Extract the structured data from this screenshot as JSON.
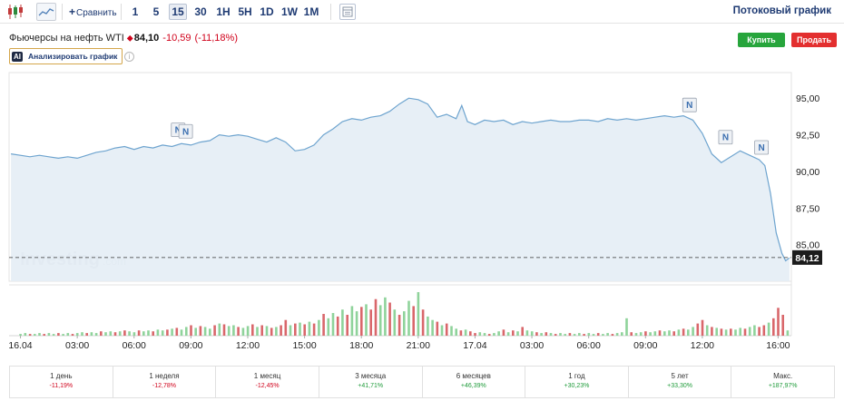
{
  "toolbar": {
    "compare_label": "Сравнить",
    "intervals": [
      {
        "label": "1",
        "active": false
      },
      {
        "label": "5",
        "active": false
      },
      {
        "label": "15",
        "active": true
      },
      {
        "label": "30",
        "active": false
      },
      {
        "label": "1H",
        "active": false
      },
      {
        "label": "5H",
        "active": false
      },
      {
        "label": "1D",
        "active": false
      },
      {
        "label": "1W",
        "active": false
      },
      {
        "label": "1M",
        "active": false
      }
    ],
    "stream_label": "Потоковый график"
  },
  "instrument": {
    "name": "Фьючерсы на нефть WTI",
    "arrow": "⬥",
    "price": "84,10",
    "change": "-10,59",
    "change_pct": "(-11,18%)"
  },
  "actions": {
    "buy": "Купить",
    "sell": "Продать",
    "analyze": "Анализировать график",
    "ai_badge": "AI"
  },
  "colors": {
    "brand": "#1f3b73",
    "buy": "#27a53c",
    "sell": "#e32f2f",
    "line": "#6ea4cf",
    "area": "#e4edf5",
    "vol_up": "#8fd39b",
    "vol_down": "#d9676b"
  },
  "chart_data": {
    "type": "area",
    "watermark": "Investing",
    "watermark_suffix": ".com",
    "y_ticks": [
      "95,00",
      "92,50",
      "90,00",
      "87,50",
      "85,00"
    ],
    "y_tick_values": [
      95.0,
      92.5,
      90.0,
      87.5,
      85.0
    ],
    "ylim": [
      82.5,
      96.5
    ],
    "current_price_label": "84,12",
    "current_price": 84.12,
    "x_ticks": [
      "16.04",
      "03:00",
      "06:00",
      "09:00",
      "12:00",
      "15:00",
      "18:00",
      "21:00",
      "17.04",
      "03:00",
      "06:00",
      "09:00",
      "12:00",
      "16:00"
    ],
    "x_tick_hours": [
      0,
      3,
      6,
      9,
      12,
      15,
      18,
      21,
      24,
      27,
      30,
      33,
      36,
      40
    ],
    "x_range_hours": [
      -0.6,
      40.7
    ],
    "series": [
      {
        "points": [
          [
            -0.5,
            91.2
          ],
          [
            0,
            91.1
          ],
          [
            0.5,
            91.0
          ],
          [
            1,
            91.1
          ],
          [
            1.5,
            91.0
          ],
          [
            2,
            90.9
          ],
          [
            2.5,
            91.0
          ],
          [
            3,
            90.9
          ],
          [
            3.5,
            91.1
          ],
          [
            4,
            91.3
          ],
          [
            4.5,
            91.4
          ],
          [
            5,
            91.6
          ],
          [
            5.5,
            91.7
          ],
          [
            6,
            91.5
          ],
          [
            6.5,
            91.7
          ],
          [
            7,
            91.6
          ],
          [
            7.5,
            91.8
          ],
          [
            8,
            91.7
          ],
          [
            8.5,
            91.9
          ],
          [
            9,
            91.8
          ],
          [
            9.5,
            92.0
          ],
          [
            10,
            92.1
          ],
          [
            10.5,
            92.5
          ],
          [
            11,
            92.4
          ],
          [
            11.5,
            92.5
          ],
          [
            12,
            92.4
          ],
          [
            12.5,
            92.2
          ],
          [
            13,
            92.0
          ],
          [
            13.5,
            92.3
          ],
          [
            14,
            92.0
          ],
          [
            14.5,
            91.4
          ],
          [
            15,
            91.5
          ],
          [
            15.5,
            91.8
          ],
          [
            16,
            92.5
          ],
          [
            16.5,
            92.9
          ],
          [
            17,
            93.4
          ],
          [
            17.5,
            93.6
          ],
          [
            18,
            93.5
          ],
          [
            18.5,
            93.7
          ],
          [
            19,
            93.8
          ],
          [
            19.5,
            94.1
          ],
          [
            20,
            94.6
          ],
          [
            20.5,
            95.0
          ],
          [
            21,
            94.9
          ],
          [
            21.5,
            94.6
          ],
          [
            22,
            93.7
          ],
          [
            22.5,
            93.9
          ],
          [
            23,
            93.6
          ],
          [
            23.3,
            94.5
          ],
          [
            23.6,
            93.4
          ],
          [
            24,
            93.2
          ],
          [
            24.5,
            93.5
          ],
          [
            25,
            93.4
          ],
          [
            25.5,
            93.5
          ],
          [
            26,
            93.2
          ],
          [
            26.5,
            93.4
          ],
          [
            27,
            93.3
          ],
          [
            27.5,
            93.4
          ],
          [
            28,
            93.5
          ],
          [
            28.5,
            93.4
          ],
          [
            29,
            93.4
          ],
          [
            29.5,
            93.5
          ],
          [
            30,
            93.5
          ],
          [
            30.5,
            93.4
          ],
          [
            31,
            93.6
          ],
          [
            31.5,
            93.5
          ],
          [
            32,
            93.6
          ],
          [
            32.5,
            93.5
          ],
          [
            33,
            93.6
          ],
          [
            33.5,
            93.7
          ],
          [
            34,
            93.8
          ],
          [
            34.5,
            93.7
          ],
          [
            35,
            93.8
          ],
          [
            35.5,
            93.5
          ],
          [
            36,
            92.6
          ],
          [
            36.5,
            91.2
          ],
          [
            37,
            90.6
          ],
          [
            37.5,
            91.0
          ],
          [
            38,
            91.4
          ],
          [
            38.5,
            91.1
          ],
          [
            39,
            90.8
          ],
          [
            39.3,
            90.4
          ],
          [
            39.6,
            88.5
          ],
          [
            39.9,
            85.8
          ],
          [
            40.2,
            84.4
          ],
          [
            40.4,
            83.9
          ],
          [
            40.6,
            84.1
          ]
        ]
      }
    ],
    "news_markers": [
      {
        "label": "N",
        "x": 8.3,
        "y": 92.0
      },
      {
        "label": "N",
        "x": 8.7,
        "y": 91.9
      },
      {
        "label": "N",
        "x": 35.3,
        "y": 93.7
      },
      {
        "label": "N",
        "x": 37.2,
        "y": 91.5
      },
      {
        "label": "N",
        "x": 39.1,
        "y": 90.8
      }
    ],
    "volume": {
      "bars": [
        [
          0.0,
          2,
          1
        ],
        [
          0.25,
          3,
          1
        ],
        [
          0.5,
          2,
          0
        ],
        [
          0.75,
          2,
          1
        ],
        [
          1.0,
          3,
          1
        ],
        [
          1.25,
          2,
          0
        ],
        [
          1.5,
          3,
          1
        ],
        [
          1.75,
          2,
          1
        ],
        [
          2.0,
          3,
          0
        ],
        [
          2.25,
          2,
          1
        ],
        [
          2.5,
          3,
          1
        ],
        [
          2.75,
          2,
          0
        ],
        [
          3.0,
          3,
          1
        ],
        [
          3.25,
          4,
          1
        ],
        [
          3.5,
          3,
          0
        ],
        [
          3.75,
          4,
          1
        ],
        [
          4.0,
          3,
          1
        ],
        [
          4.25,
          5,
          0
        ],
        [
          4.5,
          4,
          1
        ],
        [
          4.75,
          5,
          1
        ],
        [
          5.0,
          4,
          0
        ],
        [
          5.25,
          5,
          1
        ],
        [
          5.5,
          6,
          0
        ],
        [
          5.75,
          5,
          1
        ],
        [
          6.0,
          4,
          1
        ],
        [
          6.25,
          6,
          0
        ],
        [
          6.5,
          5,
          1
        ],
        [
          6.75,
          6,
          1
        ],
        [
          7.0,
          5,
          0
        ],
        [
          7.25,
          7,
          1
        ],
        [
          7.5,
          6,
          1
        ],
        [
          7.75,
          7,
          0
        ],
        [
          8.0,
          8,
          1
        ],
        [
          8.25,
          9,
          0
        ],
        [
          8.5,
          7,
          1
        ],
        [
          8.75,
          10,
          1
        ],
        [
          9.0,
          12,
          0
        ],
        [
          9.25,
          9,
          1
        ],
        [
          9.5,
          11,
          0
        ],
        [
          9.75,
          10,
          1
        ],
        [
          10.0,
          8,
          1
        ],
        [
          10.25,
          12,
          0
        ],
        [
          10.5,
          14,
          1
        ],
        [
          10.75,
          13,
          0
        ],
        [
          11.0,
          11,
          1
        ],
        [
          11.25,
          12,
          1
        ],
        [
          11.5,
          10,
          0
        ],
        [
          11.75,
          9,
          1
        ],
        [
          12.0,
          11,
          1
        ],
        [
          12.25,
          13,
          0
        ],
        [
          12.5,
          10,
          1
        ],
        [
          12.75,
          12,
          0
        ],
        [
          13.0,
          11,
          1
        ],
        [
          13.25,
          9,
          0
        ],
        [
          13.5,
          10,
          1
        ],
        [
          13.75,
          12,
          0
        ],
        [
          14.0,
          18,
          0
        ],
        [
          14.25,
          12,
          1
        ],
        [
          14.5,
          14,
          0
        ],
        [
          14.75,
          15,
          1
        ],
        [
          15.0,
          13,
          0
        ],
        [
          15.25,
          16,
          1
        ],
        [
          15.5,
          14,
          0
        ],
        [
          15.75,
          18,
          1
        ],
        [
          16.0,
          25,
          0
        ],
        [
          16.25,
          20,
          1
        ],
        [
          16.5,
          26,
          1
        ],
        [
          16.75,
          22,
          0
        ],
        [
          17.0,
          30,
          1
        ],
        [
          17.25,
          24,
          0
        ],
        [
          17.5,
          34,
          1
        ],
        [
          17.75,
          28,
          1
        ],
        [
          18.0,
          33,
          0
        ],
        [
          18.25,
          36,
          1
        ],
        [
          18.5,
          30,
          0
        ],
        [
          18.75,
          42,
          0
        ],
        [
          19.0,
          35,
          1
        ],
        [
          19.25,
          44,
          1
        ],
        [
          19.5,
          38,
          0
        ],
        [
          19.75,
          30,
          1
        ],
        [
          20.0,
          24,
          0
        ],
        [
          20.25,
          28,
          1
        ],
        [
          20.5,
          40,
          1
        ],
        [
          20.75,
          34,
          0
        ],
        [
          21.0,
          50,
          1
        ],
        [
          21.25,
          30,
          0
        ],
        [
          21.5,
          22,
          1
        ],
        [
          21.75,
          18,
          1
        ],
        [
          22.0,
          16,
          0
        ],
        [
          22.25,
          12,
          1
        ],
        [
          22.5,
          14,
          0
        ],
        [
          22.75,
          11,
          1
        ],
        [
          23.0,
          8,
          1
        ],
        [
          23.25,
          6,
          0
        ],
        [
          23.5,
          7,
          1
        ],
        [
          23.75,
          5,
          0
        ],
        [
          24.0,
          3,
          0
        ],
        [
          24.25,
          4,
          1
        ],
        [
          24.5,
          3,
          1
        ],
        [
          24.75,
          2,
          0
        ],
        [
          25.0,
          3,
          1
        ],
        [
          25.25,
          5,
          1
        ],
        [
          25.5,
          7,
          0
        ],
        [
          25.75,
          4,
          1
        ],
        [
          26.0,
          6,
          0
        ],
        [
          26.25,
          5,
          1
        ],
        [
          26.5,
          10,
          0
        ],
        [
          26.75,
          6,
          1
        ],
        [
          27.0,
          5,
          1
        ],
        [
          27.25,
          4,
          0
        ],
        [
          27.5,
          3,
          1
        ],
        [
          27.75,
          4,
          0
        ],
        [
          28.0,
          3,
          1
        ],
        [
          28.25,
          2,
          0
        ],
        [
          28.5,
          3,
          1
        ],
        [
          28.75,
          2,
          1
        ],
        [
          29.0,
          3,
          0
        ],
        [
          29.25,
          2,
          1
        ],
        [
          29.5,
          3,
          1
        ],
        [
          29.75,
          2,
          0
        ],
        [
          30.0,
          3,
          1
        ],
        [
          30.25,
          2,
          1
        ],
        [
          30.5,
          3,
          0
        ],
        [
          30.75,
          2,
          1
        ],
        [
          31.0,
          3,
          1
        ],
        [
          31.25,
          2,
          0
        ],
        [
          31.5,
          3,
          1
        ],
        [
          31.75,
          4,
          1
        ],
        [
          32.0,
          20,
          1
        ],
        [
          32.25,
          4,
          0
        ],
        [
          32.5,
          3,
          1
        ],
        [
          32.75,
          4,
          1
        ],
        [
          33.0,
          5,
          0
        ],
        [
          33.25,
          4,
          1
        ],
        [
          33.5,
          5,
          1
        ],
        [
          33.75,
          6,
          0
        ],
        [
          34.0,
          5,
          1
        ],
        [
          34.25,
          6,
          1
        ],
        [
          34.5,
          5,
          0
        ],
        [
          34.75,
          7,
          1
        ],
        [
          35.0,
          8,
          0
        ],
        [
          35.25,
          7,
          1
        ],
        [
          35.5,
          10,
          1
        ],
        [
          35.75,
          14,
          0
        ],
        [
          36.0,
          18,
          0
        ],
        [
          36.25,
          12,
          1
        ],
        [
          36.5,
          10,
          0
        ],
        [
          36.75,
          9,
          1
        ],
        [
          37.0,
          8,
          0
        ],
        [
          37.25,
          7,
          1
        ],
        [
          37.5,
          8,
          0
        ],
        [
          37.75,
          7,
          1
        ],
        [
          38.0,
          9,
          1
        ],
        [
          38.25,
          8,
          0
        ],
        [
          38.5,
          10,
          1
        ],
        [
          38.75,
          12,
          1
        ],
        [
          39.0,
          10,
          0
        ],
        [
          39.25,
          12,
          0
        ],
        [
          39.5,
          15,
          1
        ],
        [
          39.75,
          20,
          0
        ],
        [
          40.0,
          32,
          0
        ],
        [
          40.25,
          24,
          0
        ],
        [
          40.5,
          6,
          1
        ]
      ],
      "max": 50
    }
  },
  "periods": [
    {
      "label": "1 день",
      "value": "-11,19%",
      "trend": "neg"
    },
    {
      "label": "1 неделя",
      "value": "-12,78%",
      "trend": "neg"
    },
    {
      "label": "1 месяц",
      "value": "-12,45%",
      "trend": "neg"
    },
    {
      "label": "3 месяца",
      "value": "+41,71%",
      "trend": "pos"
    },
    {
      "label": "6 месяцев",
      "value": "+46,39%",
      "trend": "pos"
    },
    {
      "label": "1 год",
      "value": "+30,23%",
      "trend": "pos"
    },
    {
      "label": "5 лет",
      "value": "+33,30%",
      "trend": "pos"
    },
    {
      "label": "Макс.",
      "value": "+187,97%",
      "trend": "pos"
    }
  ]
}
